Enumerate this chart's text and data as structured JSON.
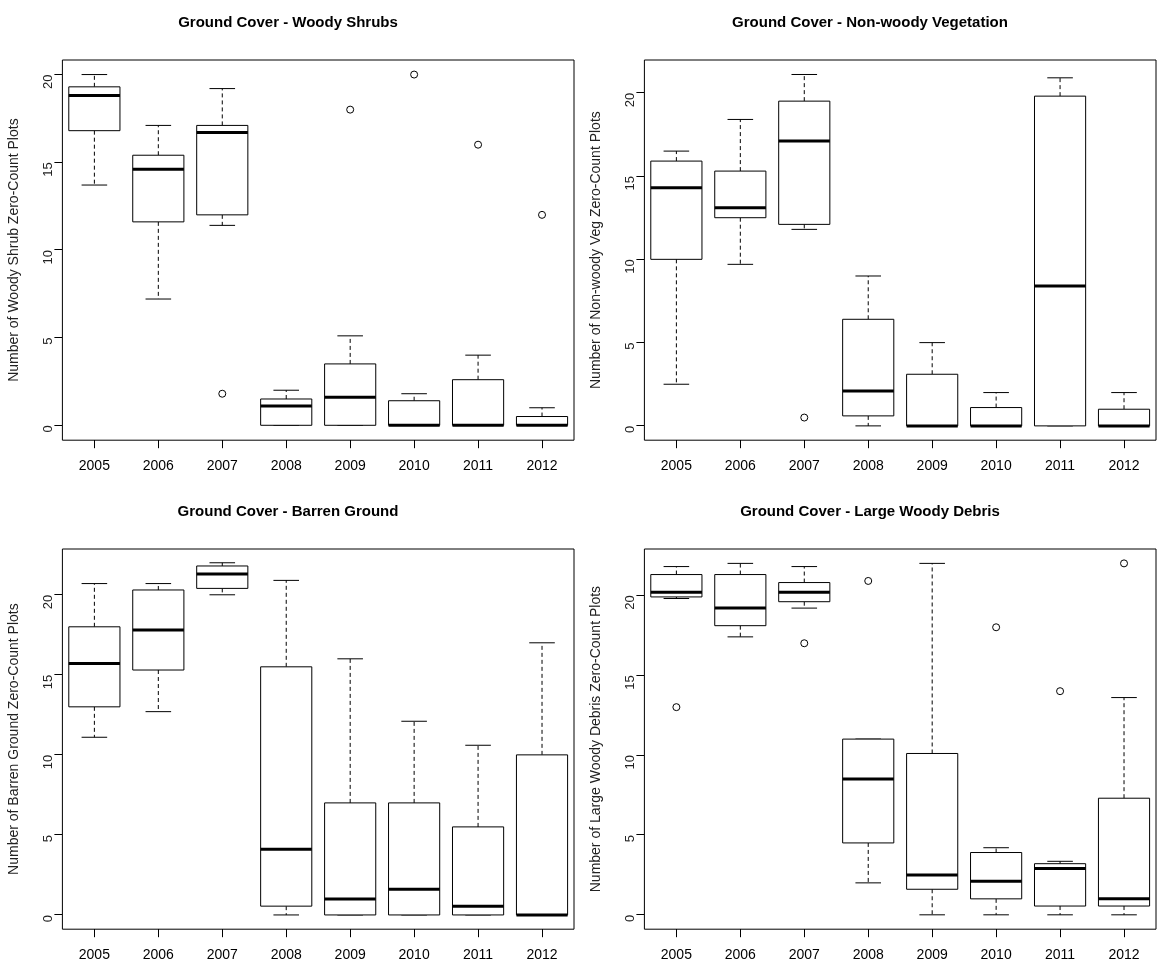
{
  "chart_data": [
    {
      "type": "box",
      "title": "Ground Cover - Woody Shrubs",
      "ylabel": "Number of Woody Shrub Zero-Count Plots",
      "categories": [
        "2005",
        "2006",
        "2007",
        "2008",
        "2009",
        "2010",
        "2011",
        "2012"
      ],
      "ylim": [
        -0.85,
        20.83
      ],
      "yticks": [
        0,
        5,
        10,
        15,
        20
      ],
      "grid": false,
      "boxes": [
        {
          "low": 13.7,
          "q1": 16.8,
          "median": 18.8,
          "q3": 19.3,
          "high": 20
        },
        {
          "low": 7.2,
          "q1": 11.6,
          "median": 14.6,
          "q3": 15.4,
          "high": 17.1
        },
        {
          "low": 11.4,
          "q1": 12,
          "median": 16.7,
          "q3": 17.1,
          "high": 19.2,
          "outliers": [
            1.8
          ]
        },
        {
          "low": 0,
          "q1": 0,
          "median": 1.1,
          "q3": 1.5,
          "high": 2
        },
        {
          "low": 0,
          "q1": 0,
          "median": 1.6,
          "q3": 3.5,
          "high": 5.1,
          "outliers": [
            18
          ]
        },
        {
          "low": 0,
          "q1": 0,
          "median": 0,
          "q3": 1.4,
          "high": 1.8,
          "outliers": [
            20
          ]
        },
        {
          "low": 0,
          "q1": 0,
          "median": 0,
          "q3": 2.6,
          "high": 4,
          "outliers": [
            16
          ]
        },
        {
          "low": 0,
          "q1": 0,
          "median": 0,
          "q3": 0.5,
          "high": 1,
          "outliers": [
            12
          ]
        }
      ]
    },
    {
      "type": "box",
      "title": "Ground Cover - Non-woody Vegetation",
      "ylabel": "Number of Non-woody Veg Zero-Count Plots",
      "categories": [
        "2005",
        "2006",
        "2007",
        "2008",
        "2009",
        "2010",
        "2011",
        "2012"
      ],
      "ylim": [
        -0.86,
        21.97
      ],
      "yticks": [
        0,
        5,
        10,
        15,
        20
      ],
      "grid": false,
      "boxes": [
        {
          "low": 2.5,
          "q1": 10,
          "median": 14.3,
          "q3": 15.9,
          "high": 16.5
        },
        {
          "low": 9.7,
          "q1": 12.5,
          "median": 13.1,
          "q3": 15.3,
          "high": 18.4
        },
        {
          "low": 11.8,
          "q1": 12.1,
          "median": 17.1,
          "q3": 19.5,
          "high": 21.1,
          "outliers": [
            0.5
          ]
        },
        {
          "low": 0,
          "q1": 0.6,
          "median": 2.1,
          "q3": 6.4,
          "high": 9
        },
        {
          "low": 0,
          "q1": 0,
          "median": 0,
          "q3": 3.1,
          "high": 5
        },
        {
          "low": 0,
          "q1": 0,
          "median": 0,
          "q3": 1.1,
          "high": 2
        },
        {
          "low": 0,
          "q1": 0,
          "median": 8.4,
          "q3": 19.8,
          "high": 20.9
        },
        {
          "low": 0,
          "q1": 0,
          "median": 0,
          "q3": 1,
          "high": 2
        }
      ]
    },
    {
      "type": "box",
      "title": "Ground Cover - Barren Ground",
      "ylabel": "Number of Barren Ground Zero-Count Plots",
      "categories": [
        "2005",
        "2006",
        "2007",
        "2008",
        "2009",
        "2010",
        "2011",
        "2012"
      ],
      "ylim": [
        -0.89,
        22.86
      ],
      "yticks": [
        0,
        5,
        10,
        15,
        20
      ],
      "grid": false,
      "boxes": [
        {
          "low": 11.1,
          "q1": 13,
          "median": 15.7,
          "q3": 18,
          "high": 20.7
        },
        {
          "low": 12.7,
          "q1": 15.3,
          "median": 17.8,
          "q3": 20.3,
          "high": 20.7
        },
        {
          "low": 20,
          "q1": 20.4,
          "median": 21.3,
          "q3": 21.8,
          "high": 22
        },
        {
          "low": 0,
          "q1": 0.55,
          "median": 4.1,
          "q3": 15.5,
          "high": 20.9
        },
        {
          "low": 0,
          "q1": 0,
          "median": 1,
          "q3": 7,
          "high": 16
        },
        {
          "low": 0,
          "q1": 0,
          "median": 1.6,
          "q3": 7,
          "high": 12.1
        },
        {
          "low": 0,
          "q1": 0,
          "median": 0.55,
          "q3": 5.5,
          "high": 10.6
        },
        {
          "low": 0,
          "q1": 0,
          "median": 0,
          "q3": 10,
          "high": 17
        }
      ]
    },
    {
      "type": "box",
      "title": "Ground Cover - Large Woody Debris",
      "ylabel": "Number of Large Woody Debris Zero-Count Plots",
      "categories": [
        "2005",
        "2006",
        "2007",
        "2008",
        "2009",
        "2010",
        "2011",
        "2012"
      ],
      "ylim": [
        -0.9,
        22.9
      ],
      "yticks": [
        0,
        5,
        10,
        15,
        20
      ],
      "grid": false,
      "boxes": [
        {
          "low": 19.8,
          "q1": 19.9,
          "median": 20.2,
          "q3": 21.3,
          "high": 21.8,
          "outliers": [
            13
          ]
        },
        {
          "low": 17.4,
          "q1": 18.1,
          "median": 19.2,
          "q3": 21.3,
          "high": 22
        },
        {
          "low": 19.2,
          "q1": 19.6,
          "median": 20.2,
          "q3": 20.8,
          "high": 21.8,
          "outliers": [
            17
          ]
        },
        {
          "low": 2,
          "q1": 4.5,
          "median": 8.5,
          "q3": 11,
          "high": 11,
          "outliers": [
            20.9
          ]
        },
        {
          "low": 0,
          "q1": 1.6,
          "median": 2.5,
          "q3": 10.1,
          "high": 22
        },
        {
          "low": 0,
          "q1": 1,
          "median": 2.1,
          "q3": 3.9,
          "high": 4.2,
          "outliers": [
            18
          ]
        },
        {
          "low": 0,
          "q1": 0.55,
          "median": 2.9,
          "q3": 3.2,
          "high": 3.35,
          "outliers": [
            14
          ]
        },
        {
          "low": 0,
          "q1": 0.55,
          "median": 1,
          "q3": 7.3,
          "high": 13.6,
          "outliers": [
            22
          ]
        }
      ]
    }
  ]
}
